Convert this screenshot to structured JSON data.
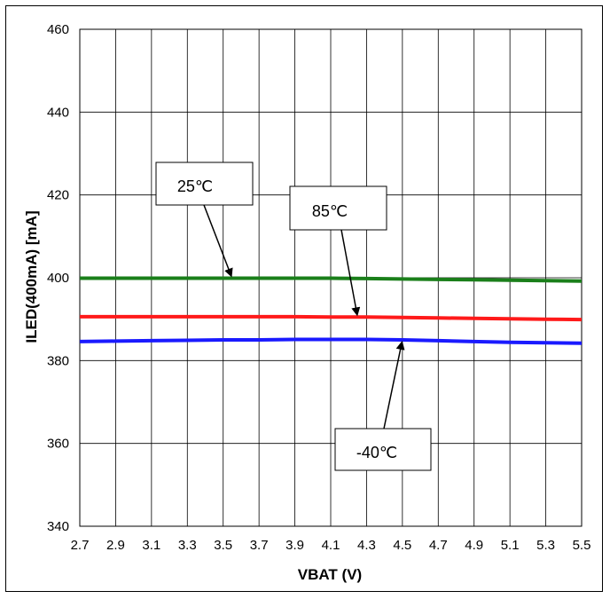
{
  "chart_data": {
    "type": "line",
    "title": "",
    "xlabel": "VBAT (V)",
    "ylabel": "ILED(400mA) [mA]",
    "xlim": [
      2.7,
      5.5
    ],
    "ylim": [
      340,
      460
    ],
    "x_ticks": [
      "2.7",
      "2.9",
      "3.1",
      "3.3",
      "3.5",
      "3.7",
      "3.9",
      "4.1",
      "4.3",
      "4.5",
      "4.7",
      "4.9",
      "5.1",
      "5.3",
      "5.5"
    ],
    "y_ticks": [
      "340",
      "360",
      "380",
      "400",
      "420",
      "440",
      "460"
    ],
    "grid": true,
    "series": [
      {
        "name": "25℃",
        "color": "#1a7f1a",
        "x": [
          2.7,
          2.9,
          3.1,
          3.3,
          3.5,
          3.7,
          3.9,
          4.1,
          4.3,
          4.5,
          4.7,
          4.9,
          5.1,
          5.3,
          5.5
        ],
        "y": [
          399.9,
          399.9,
          399.9,
          399.9,
          399.9,
          399.9,
          399.9,
          399.9,
          399.8,
          399.7,
          399.6,
          399.5,
          399.4,
          399.3,
          399.2
        ]
      },
      {
        "name": "85℃",
        "color": "#ff1a1a",
        "x": [
          2.7,
          2.9,
          3.1,
          3.3,
          3.5,
          3.7,
          3.9,
          4.1,
          4.3,
          4.5,
          4.7,
          4.9,
          5.1,
          5.3,
          5.5
        ],
        "y": [
          390.6,
          390.6,
          390.6,
          390.6,
          390.6,
          390.6,
          390.6,
          390.5,
          390.5,
          390.4,
          390.3,
          390.2,
          390.1,
          390.0,
          389.9
        ]
      },
      {
        "name": "-40℃",
        "color": "#1a1aff",
        "x": [
          2.7,
          2.9,
          3.1,
          3.3,
          3.5,
          3.7,
          3.9,
          4.1,
          4.3,
          4.5,
          4.7,
          4.9,
          5.1,
          5.3,
          5.5
        ],
        "y": [
          384.6,
          384.7,
          384.8,
          384.9,
          385.0,
          385.0,
          385.1,
          385.1,
          385.1,
          385.0,
          384.8,
          384.6,
          384.4,
          384.3,
          384.2
        ]
      }
    ],
    "annotations": [
      {
        "text": "25℃",
        "series": 0,
        "arrow_to": [
          3.55,
          399.9
        ]
      },
      {
        "text": "85℃",
        "series": 1,
        "arrow_to": [
          4.25,
          390.5
        ]
      },
      {
        "text": "-40℃",
        "series": 2,
        "arrow_to": [
          4.5,
          385.0
        ]
      }
    ]
  }
}
